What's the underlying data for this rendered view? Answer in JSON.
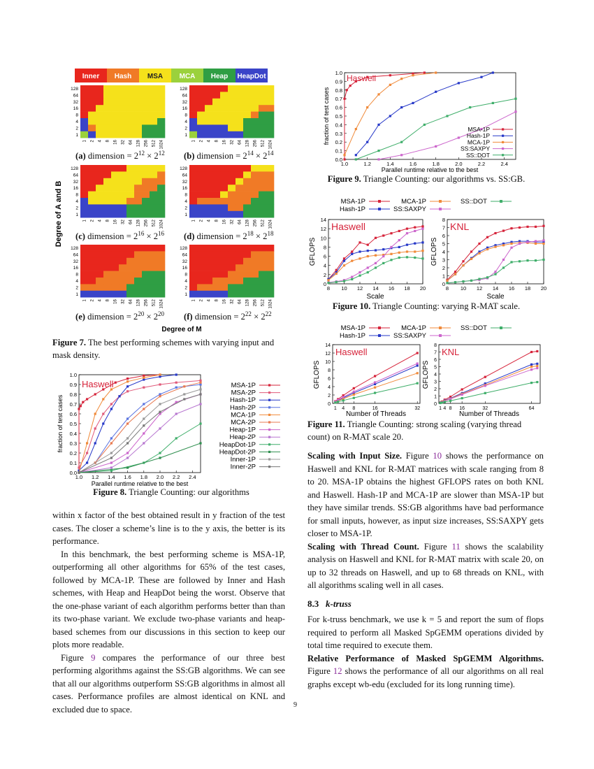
{
  "fig7": {
    "legend": [
      "Inner",
      "Hash",
      "MSA",
      "MCA",
      "Heap",
      "HeapDot"
    ],
    "legend_colors": [
      "#e8261d",
      "#f07a26",
      "#f5e11b",
      "#9bd13c",
      "#2f9e44",
      "#3a44c8"
    ],
    "y_ticks": [
      "128",
      "64",
      "32",
      "16",
      "8",
      "4",
      "2",
      "1"
    ],
    "x_ticks": [
      "1",
      "2",
      "4",
      "8",
      "16",
      "32",
      "64",
      "128",
      "256",
      "512",
      "1024"
    ],
    "ylabel": "Degree of A and B",
    "xlabel": "Degree of M",
    "sub_labels": [
      "(a) dimension = 2",
      "(b) dimension = 2",
      "(c) dimension = 2",
      "(d) dimension = 2",
      "(e) dimension = 2",
      "(f) dimension = 2"
    ],
    "sub_exps": [
      "12",
      "14",
      "16",
      "18",
      "20",
      "22"
    ],
    "caption_label": "Figure 7.",
    "caption_text": "The best performing schemes with varying input and mask density."
  },
  "fig8": {
    "series_names": [
      "MSA-1P",
      "MSA-2P",
      "Hash-1P",
      "Hash-2P",
      "MCA-1P",
      "MCA-2P",
      "Heap-1P",
      "Heap-2P",
      "HeapDot-1P",
      "HeapDot-2P",
      "Inner-1P",
      "Inner-2P"
    ],
    "series_colors": [
      "#d6233a",
      "#e05a7a",
      "#2638c8",
      "#5a74e0",
      "#f08a3a",
      "#e87a50",
      "#cc66cc",
      "#b877d0",
      "#3fae6a",
      "#2f8f4f",
      "#999999",
      "#777777"
    ],
    "machine": "Haswell",
    "ylabel": "fraction of test cases",
    "xlabel": "Parallel runtime relative to the best",
    "caption_label": "Figure 8.",
    "caption_text": "Triangle Counting: our algorithms"
  },
  "fig9": {
    "series_names": [
      "MSA-1P",
      "Hash-1P",
      "MCA-1P",
      "SS:SAXPY",
      "SS::DOT"
    ],
    "series_colors": [
      "#d6233a",
      "#2638c8",
      "#f08a3a",
      "#cc66cc",
      "#3fae6a"
    ],
    "machine": "Haswell",
    "ylabel": "fraction of test cases",
    "xlabel": "Parallel runtime relative to the best",
    "caption_label": "Figure 9.",
    "caption_text": "Triangle Counting: our algorithms vs. SS:GB."
  },
  "fig10": {
    "legend": [
      "MSA-1P",
      "MCA-1P",
      "SS::DOT",
      "Hash-1P",
      "SS:SAXPY"
    ],
    "left_machine": "Haswell",
    "right_machine": "KNL",
    "ylabel": "GFLOPS",
    "xlabel": "Scale",
    "caption_label": "Figure 10.",
    "caption_text": "Triangle Counting: varying R-MAT scale."
  },
  "fig11": {
    "legend": [
      "MSA-1P",
      "MCA-1P",
      "SS::DOT",
      "Hash-1P",
      "SS:SAXPY"
    ],
    "left_machine": "Haswell",
    "right_machine": "KNL",
    "ylabel": "GFLOPS",
    "xlabel": "Number of Threads",
    "caption_label": "Figure 11.",
    "caption_text": "Triangle Counting: strong scaling (varying thread count) on R-MAT scale 20."
  },
  "chart_data": [
    {
      "type": "line",
      "id": "fig8",
      "xlim": [
        1.0,
        2.5
      ],
      "ylim": [
        0.0,
        1.0
      ],
      "xlabel": "Parallel runtime relative to the best",
      "ylabel": "fraction of test cases",
      "series": [
        {
          "name": "MSA-1P",
          "x": [
            1.0,
            1.0,
            1.02,
            1.05,
            1.1,
            1.2,
            1.3,
            1.45,
            1.6,
            1.8,
            2.0
          ],
          "y": [
            0.0,
            0.65,
            0.68,
            0.72,
            0.75,
            0.8,
            0.85,
            0.92,
            0.96,
            0.99,
            1.0
          ]
        },
        {
          "name": "MSA-2P",
          "x": [
            1.0,
            1.1,
            1.2,
            1.3,
            1.4,
            1.5,
            1.6,
            1.8,
            2.0,
            2.2,
            2.5
          ],
          "y": [
            0.05,
            0.2,
            0.45,
            0.6,
            0.7,
            0.78,
            0.83,
            0.87,
            0.9,
            0.92,
            0.94
          ]
        },
        {
          "name": "Hash-1P",
          "x": [
            1.0,
            1.1,
            1.2,
            1.3,
            1.4,
            1.5,
            1.6,
            1.8,
            2.0,
            2.2
          ],
          "y": [
            0.02,
            0.1,
            0.3,
            0.5,
            0.65,
            0.78,
            0.88,
            0.95,
            0.98,
            1.0
          ]
        },
        {
          "name": "Hash-2P",
          "x": [
            1.0,
            1.2,
            1.4,
            1.6,
            1.8,
            2.0,
            2.2,
            2.5
          ],
          "y": [
            0.0,
            0.1,
            0.35,
            0.55,
            0.7,
            0.8,
            0.87,
            0.9
          ]
        },
        {
          "name": "MCA-1P",
          "x": [
            1.0,
            1.1,
            1.2,
            1.3,
            1.4,
            1.6,
            1.8,
            2.0
          ],
          "y": [
            0.0,
            0.3,
            0.6,
            0.75,
            0.85,
            0.93,
            0.97,
            1.0
          ]
        },
        {
          "name": "MCA-2P",
          "x": [
            1.0,
            1.2,
            1.4,
            1.6,
            1.8,
            2.0,
            2.3,
            2.5
          ],
          "y": [
            0.0,
            0.1,
            0.3,
            0.5,
            0.65,
            0.78,
            0.88,
            0.92
          ]
        },
        {
          "name": "Heap-1P",
          "x": [
            1.0,
            1.4,
            1.6,
            1.8,
            2.0,
            2.2,
            2.5
          ],
          "y": [
            0.0,
            0.1,
            0.2,
            0.4,
            0.6,
            0.72,
            0.8
          ]
        },
        {
          "name": "Heap-2P",
          "x": [
            1.0,
            1.4,
            1.6,
            1.8,
            2.0,
            2.2,
            2.5
          ],
          "y": [
            0.0,
            0.05,
            0.15,
            0.3,
            0.45,
            0.6,
            0.7
          ]
        },
        {
          "name": "HeapDot-1P",
          "x": [
            1.0,
            1.4,
            1.8,
            2.0,
            2.2,
            2.5
          ],
          "y": [
            0.0,
            0.02,
            0.1,
            0.2,
            0.35,
            0.5
          ]
        },
        {
          "name": "HeapDot-2P",
          "x": [
            1.0,
            1.6,
            2.0,
            2.5
          ],
          "y": [
            0.0,
            0.05,
            0.15,
            0.3
          ]
        },
        {
          "name": "Inner-1P",
          "x": [
            1.0,
            1.4,
            1.6,
            1.8,
            2.0,
            2.3,
            2.5
          ],
          "y": [
            0.0,
            0.2,
            0.35,
            0.55,
            0.7,
            0.8,
            0.85
          ]
        },
        {
          "name": "Inner-2P",
          "x": [
            1.0,
            1.4,
            1.6,
            1.8,
            2.0,
            2.3,
            2.5
          ],
          "y": [
            0.0,
            0.15,
            0.3,
            0.48,
            0.62,
            0.75,
            0.8
          ]
        }
      ]
    },
    {
      "type": "line",
      "id": "fig9",
      "xlim": [
        1.0,
        2.5
      ],
      "ylim": [
        0.0,
        1.0
      ],
      "xlabel": "Parallel runtime relative to the best",
      "ylabel": "fraction of test cases",
      "series": [
        {
          "name": "MSA-1P",
          "x": [
            1.0,
            1.0,
            1.02,
            1.05,
            1.1,
            1.2,
            1.4,
            1.6,
            1.7
          ],
          "y": [
            0.0,
            0.7,
            0.8,
            0.85,
            0.9,
            0.95,
            0.97,
            0.99,
            1.0
          ]
        },
        {
          "name": "Hash-1P",
          "x": [
            1.1,
            1.2,
            1.3,
            1.4,
            1.5,
            1.6,
            1.8,
            2.0,
            2.2,
            2.3
          ],
          "y": [
            0.05,
            0.2,
            0.4,
            0.5,
            0.6,
            0.65,
            0.78,
            0.88,
            0.95,
            1.0
          ]
        },
        {
          "name": "MCA-1P",
          "x": [
            1.0,
            1.1,
            1.2,
            1.3,
            1.4,
            1.5,
            1.6,
            1.8
          ],
          "y": [
            0.05,
            0.35,
            0.6,
            0.75,
            0.86,
            0.93,
            0.97,
            1.0
          ]
        },
        {
          "name": "SS:SAXPY",
          "x": [
            1.3,
            1.5,
            1.8,
            2.0,
            2.2,
            2.5
          ],
          "y": [
            0.0,
            0.05,
            0.15,
            0.25,
            0.35,
            0.55
          ]
        },
        {
          "name": "SS::DOT",
          "x": [
            1.1,
            1.3,
            1.5,
            1.7,
            1.9,
            2.1,
            2.3,
            2.5
          ],
          "y": [
            0.0,
            0.1,
            0.2,
            0.4,
            0.5,
            0.6,
            0.65,
            0.7
          ]
        }
      ]
    },
    {
      "type": "line",
      "id": "fig10-haswell",
      "x": [
        8,
        9,
        10,
        11,
        12,
        13,
        14,
        15,
        16,
        17,
        18,
        19,
        20
      ],
      "xlim": [
        8,
        20
      ],
      "ylim": [
        0,
        14
      ],
      "xlabel": "Scale",
      "ylabel": "GFLOPS",
      "series": [
        {
          "name": "MSA-1P",
          "values": [
            1.0,
            3.0,
            5.5,
            7.0,
            9.0,
            8.5,
            10.0,
            10.5,
            11.0,
            11.5,
            12.0,
            12.3,
            12.5
          ]
        },
        {
          "name": "Hash-1P",
          "values": [
            1.0,
            2.5,
            5.0,
            6.5,
            7.0,
            7.2,
            7.3,
            7.5,
            7.8,
            8.0,
            8.5,
            8.8,
            9.0
          ]
        },
        {
          "name": "MCA-1P",
          "values": [
            0.8,
            2.2,
            4.0,
            5.0,
            5.5,
            6.0,
            6.2,
            6.3,
            6.5,
            6.8,
            7.0,
            7.0,
            7.2
          ]
        },
        {
          "name": "SS:SAXPY",
          "values": [
            0.3,
            0.5,
            0.8,
            1.5,
            2.5,
            3.5,
            4.5,
            6.0,
            8.0,
            9.5,
            11.0,
            11.5,
            12.0
          ]
        },
        {
          "name": "SS::DOT",
          "values": [
            0.2,
            0.4,
            0.6,
            1.0,
            1.8,
            2.5,
            3.5,
            4.5,
            5.2,
            5.7,
            5.8,
            5.7,
            5.5
          ]
        }
      ]
    },
    {
      "type": "line",
      "id": "fig10-knl",
      "x": [
        8,
        9,
        10,
        11,
        12,
        13,
        14,
        15,
        16,
        17,
        18,
        19,
        20
      ],
      "xlim": [
        8,
        20
      ],
      "ylim": [
        0,
        8
      ],
      "xlabel": "Scale",
      "ylabel": "GFLOPS",
      "series": [
        {
          "name": "MSA-1P",
          "values": [
            0.5,
            1.5,
            2.8,
            4.0,
            5.0,
            5.8,
            6.3,
            6.6,
            6.9,
            7.0,
            7.1,
            7.1,
            7.2
          ]
        },
        {
          "name": "Hash-1P",
          "values": [
            0.4,
            1.2,
            2.3,
            3.2,
            4.0,
            4.5,
            4.8,
            5.0,
            5.2,
            5.3,
            5.3,
            5.2,
            5.2
          ]
        },
        {
          "name": "MCA-1P",
          "values": [
            0.4,
            1.2,
            2.3,
            3.1,
            3.8,
            4.3,
            4.6,
            4.8,
            5.0,
            5.1,
            5.1,
            5.0,
            5.0
          ]
        },
        {
          "name": "SS:SAXPY",
          "values": [
            0.1,
            0.2,
            0.3,
            0.4,
            0.5,
            0.7,
            1.5,
            3.0,
            4.5,
            5.0,
            5.2,
            5.3,
            5.4
          ]
        },
        {
          "name": "SS::DOT",
          "values": [
            0.1,
            0.2,
            0.3,
            0.4,
            0.6,
            0.8,
            1.2,
            2.0,
            2.7,
            2.8,
            2.9,
            2.9,
            3.0
          ]
        }
      ]
    },
    {
      "type": "line",
      "id": "fig11-haswell",
      "x": [
        1,
        2,
        4,
        8,
        16,
        32
      ],
      "xlim": [
        0,
        33
      ],
      "ylim": [
        0,
        14
      ],
      "xlabel": "Number of Threads",
      "ylabel": "GFLOPS",
      "series": [
        {
          "name": "MSA-1P",
          "values": [
            0.5,
            1.0,
            1.9,
            3.6,
            6.5,
            12.0
          ]
        },
        {
          "name": "Hash-1P",
          "values": [
            0.4,
            0.7,
            1.3,
            2.5,
            4.6,
            9.0
          ]
        },
        {
          "name": "MCA-1P",
          "values": [
            0.3,
            0.6,
            1.1,
            2.1,
            3.8,
            7.2
          ]
        },
        {
          "name": "SS:SAXPY",
          "values": [
            0.4,
            0.8,
            1.5,
            2.8,
            5.0,
            9.5
          ]
        },
        {
          "name": "SS::DOT",
          "values": [
            0.2,
            0.4,
            0.7,
            1.3,
            2.5,
            4.8
          ]
        }
      ]
    },
    {
      "type": "line",
      "id": "fig11-knl",
      "x": [
        1,
        2,
        4,
        8,
        16,
        32,
        64,
        68
      ],
      "xlim": [
        0,
        70
      ],
      "ylim": [
        0,
        8
      ],
      "xlabel": "Number of Threads",
      "ylabel": "GFLOPS",
      "series": [
        {
          "name": "MSA-1P",
          "values": [
            0.1,
            0.25,
            0.5,
            0.9,
            1.9,
            3.6,
            7.0,
            7.1
          ]
        },
        {
          "name": "Hash-1P",
          "values": [
            0.1,
            0.2,
            0.4,
            0.7,
            1.4,
            2.7,
            5.3,
            5.4
          ]
        },
        {
          "name": "MCA-1P",
          "values": [
            0.1,
            0.2,
            0.35,
            0.65,
            1.3,
            2.5,
            5.0,
            5.1
          ]
        },
        {
          "name": "SS:SAXPY",
          "values": [
            0.08,
            0.15,
            0.3,
            0.6,
            1.2,
            2.4,
            4.6,
            4.8
          ]
        },
        {
          "name": "SS::DOT",
          "values": [
            0.05,
            0.1,
            0.2,
            0.35,
            0.7,
            1.4,
            2.8,
            2.9
          ]
        }
      ]
    }
  ],
  "body": {
    "left_p1": "within x factor of the best obtained result in y fraction of the test cases. The closer a scheme’s line is to the y axis, the better is its performance.",
    "left_p2": "In this benchmark, the best performing scheme is MSA-1P, outperforming all other algorithms for 65% of the test cases, followed by MCA-1P. These are followed by Inner and Hash schemes, with Heap and HeapDot being the worst. Observe that the one-phase variant of each algorithm performs better than than its two-phase variant. We exclude two-phase variants and heap-based schemes from our discussions in this section to keep our plots more readable.",
    "left_p3a": "Figure ",
    "left_p3ref": "9",
    "left_p3b": " compares the performance of our three best performing algorithms against the SS:GB algorithms. We can see that all our algorithms outperform SS:GB algorithms in almost all cases. Performance profiles are almost identical on KNL and excluded due to space.",
    "right_h1": "Scaling with Input Size.",
    "right_h1a": " Figure ",
    "right_h1ref": "10",
    "right_h1b": " shows the performance on Haswell and KNL for R-MAT matrices with scale ranging from 8 to 20. MSA-1P obtains the highest GFLOPS rates on both KNL and Haswell. Hash-1P and MCA-1P are slower than MSA-1P but they have similar trends. SS:GB algorithms have bad performance for small inputs, however, as input size increases, SS:SAXPY gets closer to MSA-1P.",
    "right_h2": "Scaling with Thread Count.",
    "right_h2a": " Figure ",
    "right_h2ref": "11",
    "right_h2b": " shows the scalability analysis on Haswell and KNL for R-MAT matrix with scale 20, on up to 32 threads on Haswell, and up to 68 threads on KNL, with all algorithms scaling well in all cases.",
    "section_num": "8.3",
    "section_title": "k-truss",
    "right_p3": "For k-truss benchmark, we use k = 5 and report the sum of flops required to perform all Masked SpGEMM operations divided by total time required to execute them.",
    "right_h3": "Relative Performance of Masked SpGEMM Algorithms.",
    "right_h3a": " Figure ",
    "right_h3ref": "12",
    "right_h3b": " shows the performance of all our algorithms on all real graphs except wb-edu (excluded for its long running time).",
    "page_number": "9"
  }
}
